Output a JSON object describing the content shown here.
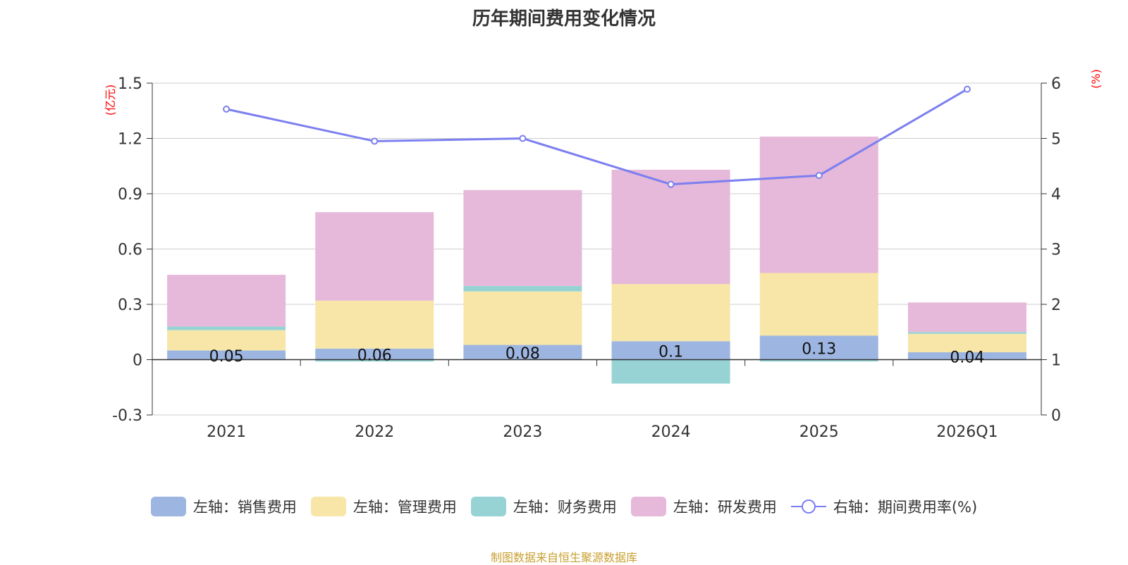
{
  "title": "历年期间费用变化情况",
  "footer": "制图数据来自恒生聚源数据库",
  "colors": {
    "sales": "#9db6e1",
    "admin": "#f7e6a8",
    "finance": "#97d3d4",
    "rd": "#e6b8d9",
    "line": "#7b7ff0",
    "unit": "#ff0000",
    "grid": "#cccccc",
    "axis": "#333333"
  },
  "chart_data": {
    "type": "bar",
    "stacked": true,
    "title": "历年期间费用变化情况",
    "categories": [
      "2021",
      "2022",
      "2023",
      "2024",
      "2025",
      "2026Q1"
    ],
    "left_axis": {
      "unit": "(亿元)",
      "ylim": [
        -0.3,
        1.5
      ],
      "ticks": [
        "-0.3",
        "0",
        "0.3",
        "0.6",
        "0.9",
        "1.2",
        "1.5"
      ]
    },
    "right_axis": {
      "unit": "(%)",
      "ylim": [
        0,
        6
      ],
      "ticks": [
        "0",
        "1",
        "2",
        "3",
        "4",
        "5",
        "6"
      ]
    },
    "series": [
      {
        "name": "左轴：销售费用",
        "key": "sales",
        "values": [
          0.05,
          0.06,
          0.08,
          0.1,
          0.13,
          0.04
        ],
        "labels": [
          "0.05",
          "0.06",
          "0.08",
          "0.1",
          "0.13",
          "0.04"
        ]
      },
      {
        "name": "左轴：管理费用",
        "key": "admin",
        "values": [
          0.11,
          0.26,
          0.29,
          0.31,
          0.34,
          0.1
        ]
      },
      {
        "name": "左轴：财务费用",
        "key": "finance",
        "values": [
          0.02,
          -0.01,
          0.03,
          -0.13,
          -0.01,
          0.01
        ]
      },
      {
        "name": "左轴：研发费用",
        "key": "rd",
        "values": [
          0.28,
          0.48,
          0.52,
          0.62,
          0.74,
          0.16
        ]
      }
    ],
    "line_series": {
      "name": "右轴：期间费用率(%)",
      "key": "line",
      "values": [
        5.53,
        4.95,
        5.0,
        4.17,
        4.33,
        5.89
      ]
    },
    "legend_position": "bottom"
  }
}
